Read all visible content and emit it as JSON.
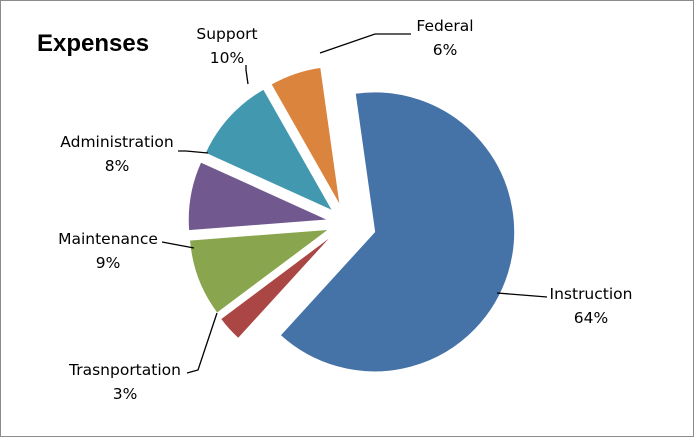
{
  "chart_data": {
    "type": "pie",
    "title": "Expenses",
    "exploded": true,
    "legend": "none",
    "slices": [
      {
        "name": "Instruction",
        "label": "64%",
        "value": 64,
        "color": "#4572a7"
      },
      {
        "name": "Trasnportation",
        "label": "3%",
        "value": 3,
        "color": "#aa4643"
      },
      {
        "name": "Maintenance",
        "label": "9%",
        "value": 9,
        "color": "#89a54e"
      },
      {
        "name": "Administration",
        "label": "8%",
        "value": 8,
        "color": "#71588f"
      },
      {
        "name": "Support",
        "label": "10%",
        "value": 10,
        "color": "#4198af"
      },
      {
        "name": "Federal",
        "label": "6%",
        "value": 6,
        "color": "#db843d"
      }
    ]
  }
}
